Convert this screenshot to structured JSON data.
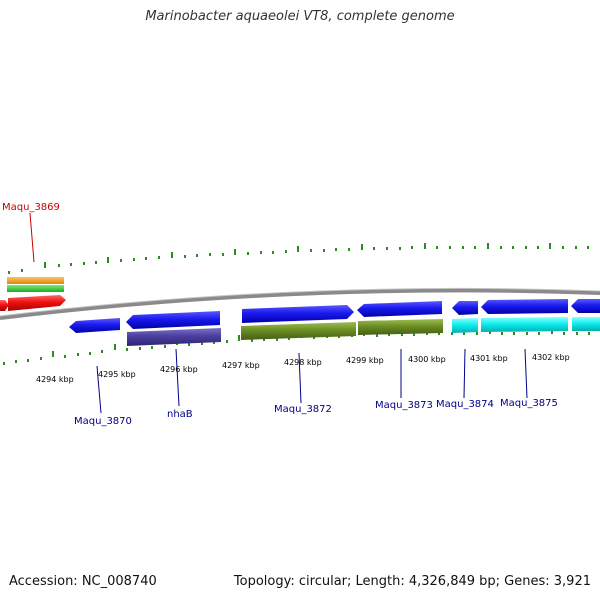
{
  "title": "Marinobacter aquaeolei VT8, complete genome",
  "footer": {
    "accession": "Accession: NC_008740",
    "summary": "Topology: circular; Length: 4,326,849 bp; Genes: 3,921"
  },
  "colors": {
    "backbone": "#8a8a8a",
    "tick": "#2e8b22",
    "label_blue": "#00008b",
    "label_red": "#cc0000",
    "gene_red": "#ee1111",
    "gene_blue": "#1a1aee",
    "gene_purple": "#4b3f9e",
    "gene_olive": "#6b8e23",
    "gene_cyan": "#11eeee",
    "gene_orange": "#ff9900",
    "gene_green": "#33cc33"
  },
  "scale_labels": [
    "4294 kbp",
    "4295 kbp",
    "4296 kbp",
    "4297 kbp",
    "4298 kbp",
    "4299 kbp",
    "4300 kbp",
    "4301 kbp",
    "4302 kbp"
  ],
  "gene_labels": [
    {
      "id": "maqu3869",
      "text": "Maqu_3869",
      "color": "red"
    },
    {
      "id": "maqu3870",
      "text": "Maqu_3870",
      "color": "blue"
    },
    {
      "id": "nhab",
      "text": "nhaB",
      "color": "blue"
    },
    {
      "id": "maqu3872",
      "text": "Maqu_3872",
      "color": "blue"
    },
    {
      "id": "maqu3873",
      "text": "Maqu_3873",
      "color": "blue"
    },
    {
      "id": "maqu3874",
      "text": "Maqu_3874",
      "color": "blue"
    },
    {
      "id": "maqu3875",
      "text": "Maqu_3875",
      "color": "blue"
    }
  ]
}
